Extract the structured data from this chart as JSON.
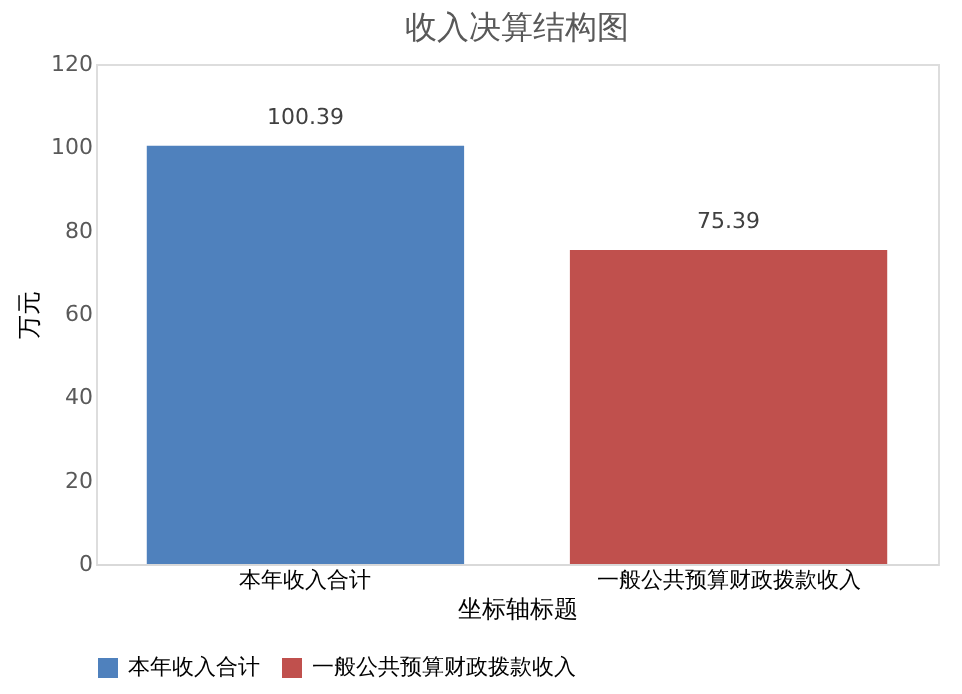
{
  "chart_data": {
    "type": "bar",
    "title": "收入决算结构图",
    "xlabel": "坐标轴标题",
    "ylabel": "万元",
    "categories": [
      "本年收入合计",
      "一般公共预算财政拨款收入"
    ],
    "series": [
      {
        "name": "本年收入合计",
        "color": "#4f81bd",
        "values": [
          100.39,
          null
        ]
      },
      {
        "name": "一般公共预算财政拨款收入",
        "color": "#c0504d",
        "values": [
          null,
          75.39
        ]
      }
    ],
    "ylim": [
      0,
      120
    ],
    "yticks": [
      0,
      20,
      40,
      60,
      80,
      100,
      120
    ],
    "data_labels": true,
    "legend": "bottom",
    "grid": false
  }
}
